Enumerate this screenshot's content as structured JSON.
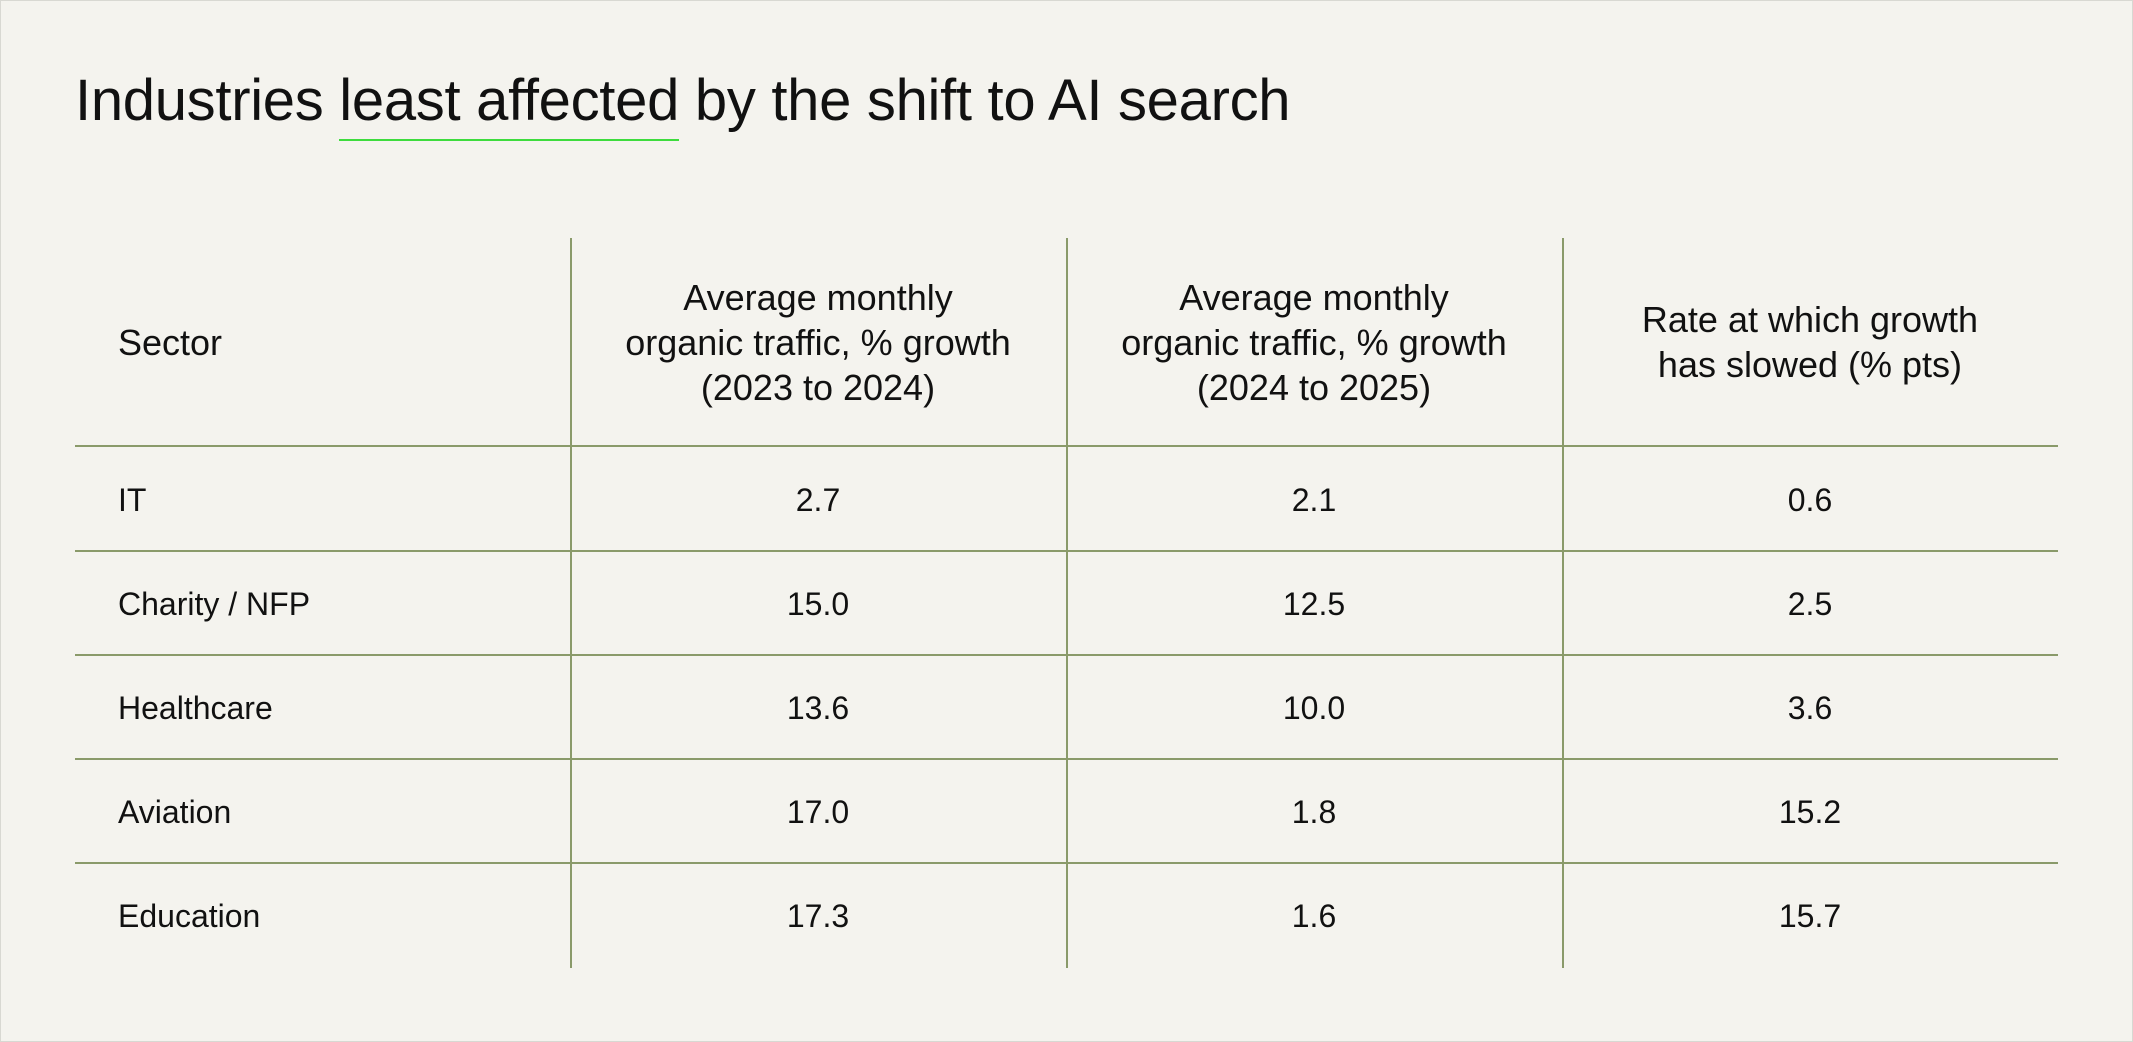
{
  "title": {
    "prefix": "Industries ",
    "highlight": "least affected",
    "suffix": " by the shift to AI search"
  },
  "colors": {
    "background": "#f4f3ee",
    "rule": "#8a9a6a",
    "highlight_underline": "#3ddc3d"
  },
  "chart_data": {
    "type": "table",
    "columns": [
      "Sector",
      "Average monthly\norganic traffic, % growth\n(2023 to 2024)",
      "Average monthly\norganic traffic, % growth\n(2024 to 2025)",
      "Rate at which growth\nhas slowed (% pts)"
    ],
    "rows": [
      [
        "IT",
        "2.7",
        "2.1",
        "0.6"
      ],
      [
        "Charity / NFP",
        "15.0",
        "12.5",
        "2.5"
      ],
      [
        "Healthcare",
        "13.6",
        "10.0",
        "3.6"
      ],
      [
        "Aviation",
        "17.0",
        "1.8",
        "15.2"
      ],
      [
        "Education",
        "17.3",
        "1.6",
        "15.7"
      ]
    ]
  }
}
